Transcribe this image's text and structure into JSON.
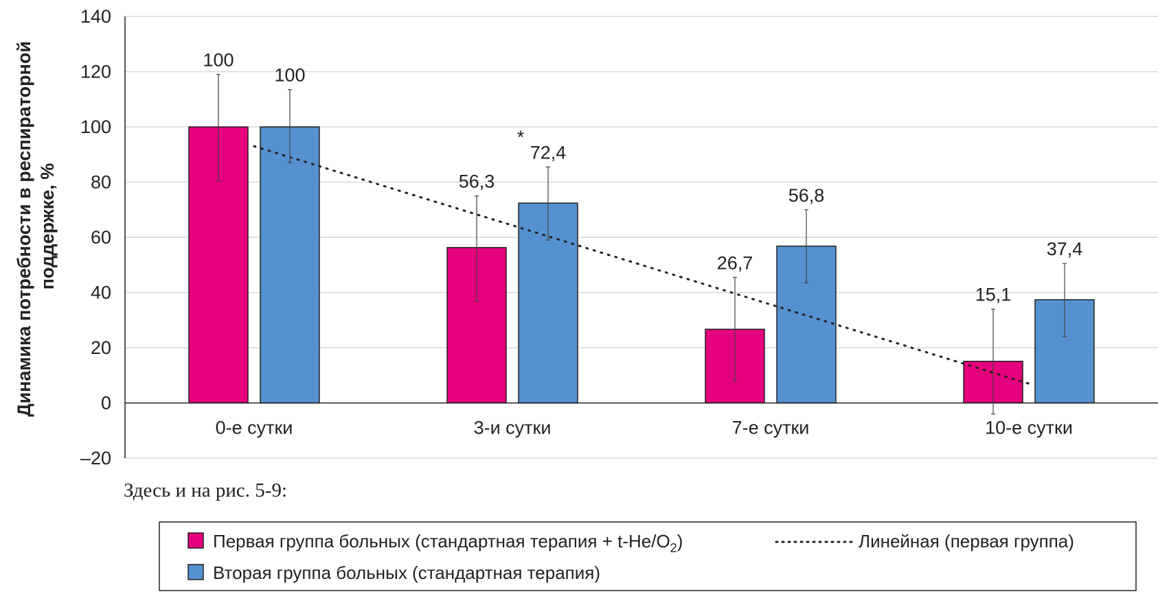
{
  "chart_data": {
    "type": "bar",
    "ylabel_lines": [
      "Динамика потребности в респираторной",
      "поддержке, %"
    ],
    "categories": [
      "0-е сутки",
      "3-и сутки",
      "7-е сутки",
      "10-е сутки"
    ],
    "ylim": [
      -20,
      140
    ],
    "yticks": [
      -20,
      0,
      20,
      40,
      60,
      80,
      100,
      120,
      140
    ],
    "ytick_labels": [
      "–20",
      "0",
      "20",
      "40",
      "60",
      "80",
      "100",
      "120",
      "140"
    ],
    "grid": true,
    "series": [
      {
        "name": "Первая группа больных (стандартная терапия + t-He/O₂)",
        "color": "#e5007d",
        "values": [
          100,
          56.3,
          26.7,
          15.1
        ],
        "labels": [
          "100",
          "56,3",
          "26,7",
          "15,1"
        ],
        "err_low": [
          80.5,
          37,
          8,
          -4
        ],
        "err_high": [
          119,
          75,
          45.5,
          34
        ]
      },
      {
        "name": "Вторая группа больных (стандартная терапия)",
        "color": "#5591cf",
        "values": [
          100,
          72.4,
          56.8,
          37.4
        ],
        "labels": [
          "100",
          "72,4",
          "56,8",
          "37,4"
        ],
        "err_low": [
          87,
          59,
          43.5,
          24
        ],
        "err_high": [
          113.5,
          85.5,
          70,
          50.5
        ]
      }
    ],
    "trendline": {
      "name": "Линейная (первая группа)",
      "series_index": 0,
      "y_start": 93,
      "y_end": 7
    },
    "annotations": [
      {
        "text": "*",
        "category_index": 1,
        "y": 94
      }
    ],
    "legend_placement": "bottom"
  },
  "note": "Здесь и на рис. 5-9:",
  "legend": {
    "items": [
      {
        "label_main": "Первая группа больных (стандартная терапия + t-He/O",
        "label_sub": "2",
        "label_tail": ")",
        "color": "#e5007d"
      },
      {
        "label_main": "Вторая группа больных (стандартная терапия)",
        "label_sub": "",
        "label_tail": "",
        "color": "#5591cf"
      }
    ],
    "trend_label": "Линейная (первая группа)"
  }
}
